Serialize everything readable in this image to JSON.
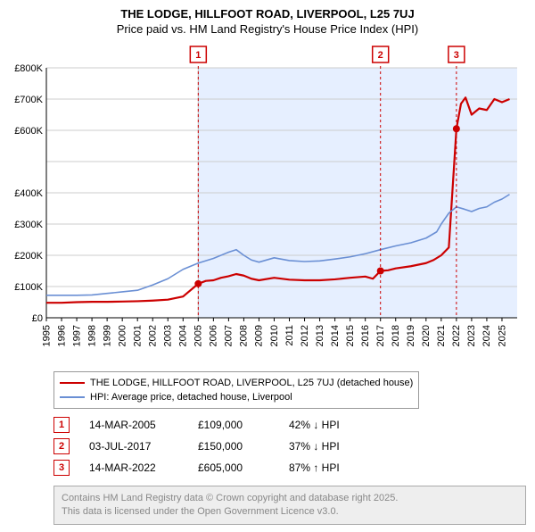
{
  "title_line1": "THE LODGE, HILLFOOT ROAD, LIVERPOOL, L25 7UJ",
  "title_line2": "Price paid vs. HM Land Registry's House Price Index (HPI)",
  "chart": {
    "type": "line",
    "x_years": [
      1995,
      1996,
      1997,
      1998,
      1999,
      2000,
      2001,
      2002,
      2003,
      2004,
      2005,
      2006,
      2007,
      2008,
      2009,
      2010,
      2011,
      2012,
      2013,
      2014,
      2015,
      2016,
      2017,
      2018,
      2019,
      2020,
      2021,
      2022,
      2023,
      2024,
      2025
    ],
    "xlim": [
      1995,
      2026
    ],
    "ylim": [
      0,
      800000
    ],
    "ytick_step": 100000,
    "yticks_labels": [
      "£0",
      "£100K",
      "£200K",
      "£300K",
      "£400K",
      "",
      "£600K",
      "£700K",
      "£800K"
    ],
    "background_color": "#ffffff",
    "shaded_band_color": "#e6efff",
    "grid_color": "#cccccc",
    "axis_color": "#000000",
    "label_font_size": 11,
    "series": [
      {
        "key": "price_paid",
        "color": "#cc0000",
        "width": 2.2,
        "points": [
          [
            1995,
            48000
          ],
          [
            1996,
            48000
          ],
          [
            1997,
            50000
          ],
          [
            1998,
            51000
          ],
          [
            1999,
            51000
          ],
          [
            2000,
            52000
          ],
          [
            2001,
            53000
          ],
          [
            2002,
            55000
          ],
          [
            2003,
            58000
          ],
          [
            2004,
            68000
          ],
          [
            2005,
            109000
          ],
          [
            2005.5,
            118000
          ],
          [
            2006,
            120000
          ],
          [
            2006.5,
            128000
          ],
          [
            2007,
            133000
          ],
          [
            2007.5,
            140000
          ],
          [
            2008,
            135000
          ],
          [
            2008.5,
            125000
          ],
          [
            2009,
            120000
          ],
          [
            2010,
            128000
          ],
          [
            2011,
            122000
          ],
          [
            2012,
            120000
          ],
          [
            2013,
            120000
          ],
          [
            2014,
            123000
          ],
          [
            2015,
            128000
          ],
          [
            2016,
            132000
          ],
          [
            2016.5,
            125000
          ],
          [
            2017,
            150000
          ],
          [
            2017.5,
            152000
          ],
          [
            2018,
            158000
          ],
          [
            2019,
            165000
          ],
          [
            2020,
            175000
          ],
          [
            2020.5,
            185000
          ],
          [
            2021,
            200000
          ],
          [
            2021.5,
            225000
          ],
          [
            2022,
            605000
          ],
          [
            2022.3,
            685000
          ],
          [
            2022.6,
            705000
          ],
          [
            2023,
            650000
          ],
          [
            2023.5,
            670000
          ],
          [
            2024,
            665000
          ],
          [
            2024.5,
            700000
          ],
          [
            2025,
            690000
          ],
          [
            2025.5,
            700000
          ]
        ],
        "markers": [
          {
            "x": 2005,
            "y": 109000
          },
          {
            "x": 2017,
            "y": 150000
          },
          {
            "x": 2022,
            "y": 605000
          }
        ]
      },
      {
        "key": "hpi",
        "color": "#6a8fd4",
        "width": 1.6,
        "points": [
          [
            1995,
            72000
          ],
          [
            1996,
            72000
          ],
          [
            1997,
            72000
          ],
          [
            1998,
            73000
          ],
          [
            1999,
            78000
          ],
          [
            2000,
            83000
          ],
          [
            2001,
            88000
          ],
          [
            2002,
            105000
          ],
          [
            2003,
            125000
          ],
          [
            2004,
            155000
          ],
          [
            2005,
            175000
          ],
          [
            2006,
            190000
          ],
          [
            2007,
            210000
          ],
          [
            2007.5,
            218000
          ],
          [
            2008,
            200000
          ],
          [
            2008.5,
            185000
          ],
          [
            2009,
            178000
          ],
          [
            2010,
            192000
          ],
          [
            2011,
            183000
          ],
          [
            2012,
            180000
          ],
          [
            2013,
            182000
          ],
          [
            2014,
            188000
          ],
          [
            2015,
            195000
          ],
          [
            2016,
            205000
          ],
          [
            2017,
            218000
          ],
          [
            2018,
            230000
          ],
          [
            2019,
            240000
          ],
          [
            2020,
            255000
          ],
          [
            2020.7,
            275000
          ],
          [
            2021,
            300000
          ],
          [
            2021.5,
            335000
          ],
          [
            2022,
            355000
          ],
          [
            2022.5,
            348000
          ],
          [
            2023,
            340000
          ],
          [
            2023.5,
            350000
          ],
          [
            2024,
            355000
          ],
          [
            2024.5,
            370000
          ],
          [
            2025,
            380000
          ],
          [
            2025.5,
            395000
          ]
        ]
      }
    ],
    "flags": [
      {
        "n": "1",
        "x": 2005
      },
      {
        "n": "2",
        "x": 2017
      },
      {
        "n": "3",
        "x": 2022
      }
    ],
    "vertical_ref_line": {
      "x": 2005,
      "color": "#999999"
    }
  },
  "legend": {
    "items": [
      {
        "color": "#cc0000",
        "label": "THE LODGE, HILLFOOT ROAD, LIVERPOOL, L25 7UJ (detached house)"
      },
      {
        "color": "#6a8fd4",
        "label": "HPI: Average price, detached house, Liverpool"
      }
    ]
  },
  "events": [
    {
      "n": "1",
      "date": "14-MAR-2005",
      "price": "£109,000",
      "pct": "42% ↓ HPI"
    },
    {
      "n": "2",
      "date": "03-JUL-2017",
      "price": "£150,000",
      "pct": "37% ↓ HPI"
    },
    {
      "n": "3",
      "date": "14-MAR-2022",
      "price": "£605,000",
      "pct": "87% ↑ HPI"
    }
  ],
  "footer_line1": "Contains HM Land Registry data © Crown copyright and database right 2025.",
  "footer_line2": "This data is licensed under the Open Government Licence v3.0."
}
